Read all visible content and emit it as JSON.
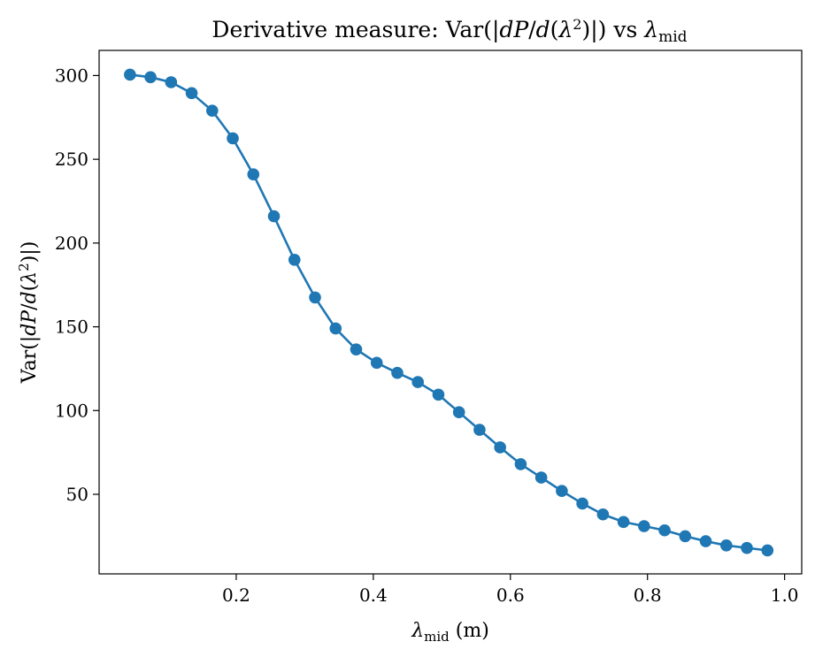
{
  "chart_data": {
    "type": "line",
    "title": "Derivative measure: Var(|dP/d(λ²)|) vs λ_mid",
    "xlabel": "λ_mid (m)",
    "ylabel": "Var(|dP/d(λ²)|)",
    "xlim": [
      0.0,
      1.025
    ],
    "ylim": [
      2.5,
      315
    ],
    "xticks": [
      0.2,
      0.4,
      0.6,
      0.8,
      1.0
    ],
    "xtick_labels": [
      "0.2",
      "0.4",
      "0.6",
      "0.8",
      "1.0"
    ],
    "yticks": [
      50,
      100,
      150,
      200,
      250,
      300
    ],
    "ytick_labels": [
      "50",
      "100",
      "150",
      "200",
      "250",
      "300"
    ],
    "grid": false,
    "series": [
      {
        "color": "#1f77b4",
        "marker": "circle",
        "x": [
          0.045,
          0.075,
          0.105,
          0.135,
          0.165,
          0.195,
          0.225,
          0.255,
          0.285,
          0.315,
          0.345,
          0.375,
          0.405,
          0.435,
          0.465,
          0.495,
          0.525,
          0.555,
          0.585,
          0.615,
          0.645,
          0.675,
          0.705,
          0.735,
          0.765,
          0.795,
          0.825,
          0.855,
          0.885,
          0.915,
          0.945,
          0.975
        ],
        "y": [
          300.5,
          299,
          296,
          289.5,
          279,
          262.5,
          241,
          216,
          190,
          167.5,
          149,
          136.5,
          128.5,
          122.5,
          117,
          109.5,
          99,
          88.5,
          78,
          68,
          60,
          52,
          44.5,
          38,
          33.5,
          31,
          28.5,
          25,
          22,
          19.5,
          18,
          16.5
        ]
      }
    ]
  }
}
